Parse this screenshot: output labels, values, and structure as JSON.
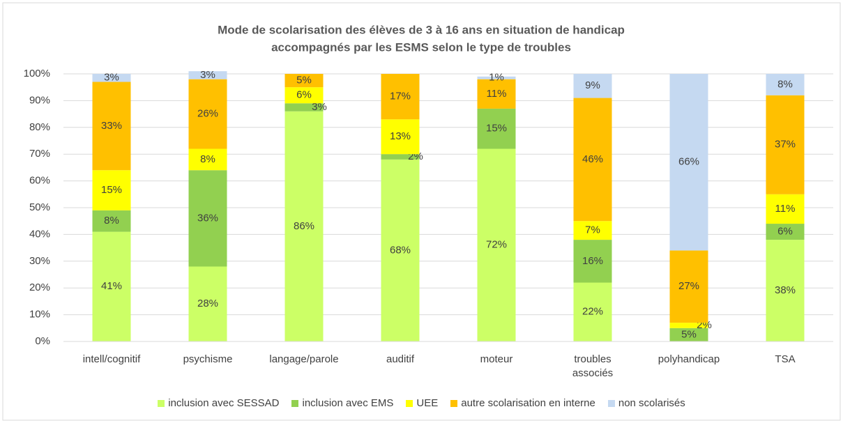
{
  "chart_data": {
    "type": "stacked_bar",
    "title": [
      "Mode de scolarisation des élèves de 3 à 16 ans en situation de handicap",
      "accompagnés par les ESMS selon le type de troubles"
    ],
    "categories": [
      "intell/cognitif",
      "psychisme",
      "langage/parole",
      "auditif",
      "moteur",
      "troubles\nassociés",
      "polyhandicap",
      "TSA"
    ],
    "ylim": [
      0,
      100
    ],
    "yticks": [
      {
        "value": 0,
        "label": "0%"
      },
      {
        "value": 10,
        "label": "10%"
      },
      {
        "value": 20,
        "label": "20%"
      },
      {
        "value": 30,
        "label": "30%"
      },
      {
        "value": 40,
        "label": "40%"
      },
      {
        "value": 50,
        "label": "50%"
      },
      {
        "value": 60,
        "label": "60%"
      },
      {
        "value": 70,
        "label": "70%"
      },
      {
        "value": 80,
        "label": "80%"
      },
      {
        "value": 90,
        "label": "90%"
      },
      {
        "value": 100,
        "label": "100%"
      }
    ],
    "grid": true,
    "legend": "bottom",
    "series": [
      {
        "name": "inclusion avec SESSAD",
        "color": "#ccff66",
        "values": [
          41,
          28,
          86,
          68,
          72,
          22,
          null,
          38
        ],
        "value_labels": [
          "41%",
          "28%",
          "86%",
          "68%",
          "72%",
          "22%",
          null,
          "38%"
        ]
      },
      {
        "name": "inclusion avec EMS",
        "color": "#92d050",
        "values": [
          8,
          36,
          3,
          2,
          15,
          16,
          5,
          6
        ],
        "value_labels": [
          "8%",
          "36%",
          "3%",
          "2%",
          "15%",
          "16%",
          "5%",
          "6%"
        ]
      },
      {
        "name": "UEE",
        "color": "#ffff00",
        "values": [
          15,
          8,
          6,
          13,
          null,
          7,
          2,
          11
        ],
        "value_labels": [
          "15%",
          "8%",
          "6%",
          "13%",
          null,
          "7%",
          "2%",
          "11%"
        ]
      },
      {
        "name": "autre scolarisation en interne",
        "color": "#ffc000",
        "values": [
          33,
          26,
          5,
          17,
          11,
          46,
          27,
          37
        ],
        "value_labels": [
          "33%",
          "26%",
          "5%",
          "17%",
          "11%",
          "46%",
          "27%",
          "37%"
        ]
      },
      {
        "name": "non scolarisés",
        "color": "#c5d9f1",
        "values": [
          3,
          3,
          null,
          null,
          1,
          9,
          66,
          8
        ],
        "value_labels": [
          "3%",
          "3%",
          null,
          null,
          "1%",
          "9%",
          "66%",
          "8%"
        ]
      }
    ]
  }
}
